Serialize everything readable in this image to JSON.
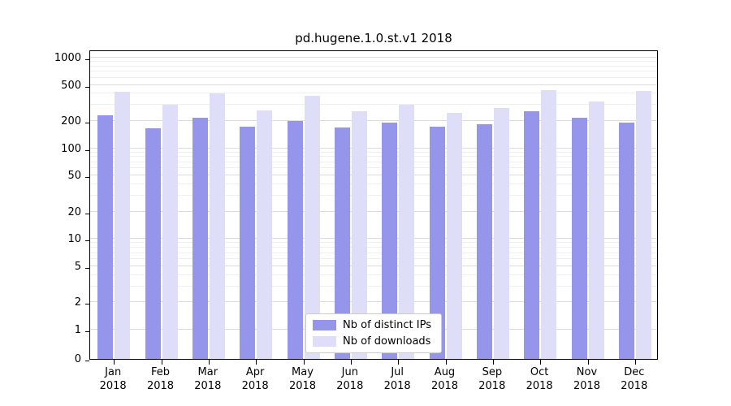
{
  "title": "pd.hugene.1.0.st.v1 2018",
  "chart_data": {
    "type": "bar",
    "title": "pd.hugene.1.0.st.v1 2018",
    "scale": "symlog",
    "grid": true,
    "legend_position": "bottom-center-inside",
    "yticks": [
      0,
      1,
      2,
      5,
      10,
      20,
      50,
      100,
      200,
      500,
      1000
    ],
    "ylim": [
      0,
      1200
    ],
    "categories": [
      "Jan 2018",
      "Feb 2018",
      "Mar 2018",
      "Apr 2018",
      "May 2018",
      "Jun 2018",
      "Jul 2018",
      "Aug 2018",
      "Sep 2018",
      "Oct 2018",
      "Nov 2018",
      "Dec 2018"
    ],
    "series": [
      {
        "name": "Nb of distinct IPs",
        "color": "#9595ec",
        "values": [
          230,
          165,
          215,
          172,
          200,
          168,
          190,
          172,
          185,
          255,
          215,
          192
        ]
      },
      {
        "name": "Nb of downloads",
        "color": "#dedef9",
        "values": [
          420,
          300,
          400,
          260,
          380,
          258,
          300,
          245,
          280,
          440,
          330,
          430
        ]
      }
    ]
  }
}
